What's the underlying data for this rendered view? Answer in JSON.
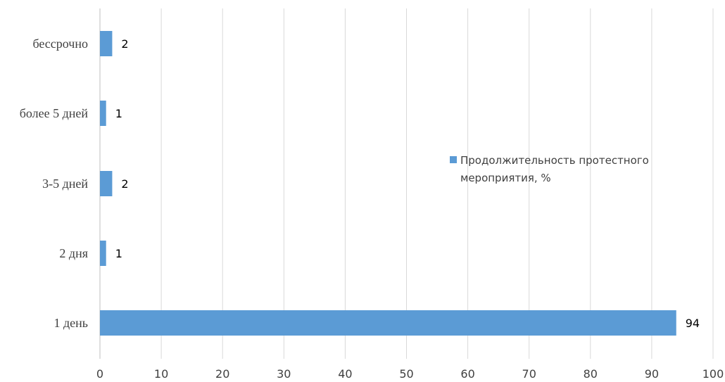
{
  "chart_data": {
    "type": "bar",
    "orientation": "horizontal",
    "categories": [
      "1 день",
      "2 дня",
      "3-5 дней",
      "более 5 дней",
      "бессрочно"
    ],
    "series": [
      {
        "name": "Продолжительность протестного мероприятия, %",
        "values": [
          94,
          1,
          2,
          1,
          2
        ]
      }
    ],
    "xlim": [
      0,
      100
    ],
    "x_ticks": [
      0,
      10,
      20,
      30,
      40,
      50,
      60,
      70,
      80,
      90,
      100
    ],
    "grid": "vertical",
    "legend": {
      "placement": "right",
      "lines": [
        "Продолжительность протестного",
        "мероприятия, %"
      ]
    },
    "colors": {
      "bar": "#5b9bd5",
      "grid": "#d9d9d9",
      "text": "#404040"
    }
  }
}
